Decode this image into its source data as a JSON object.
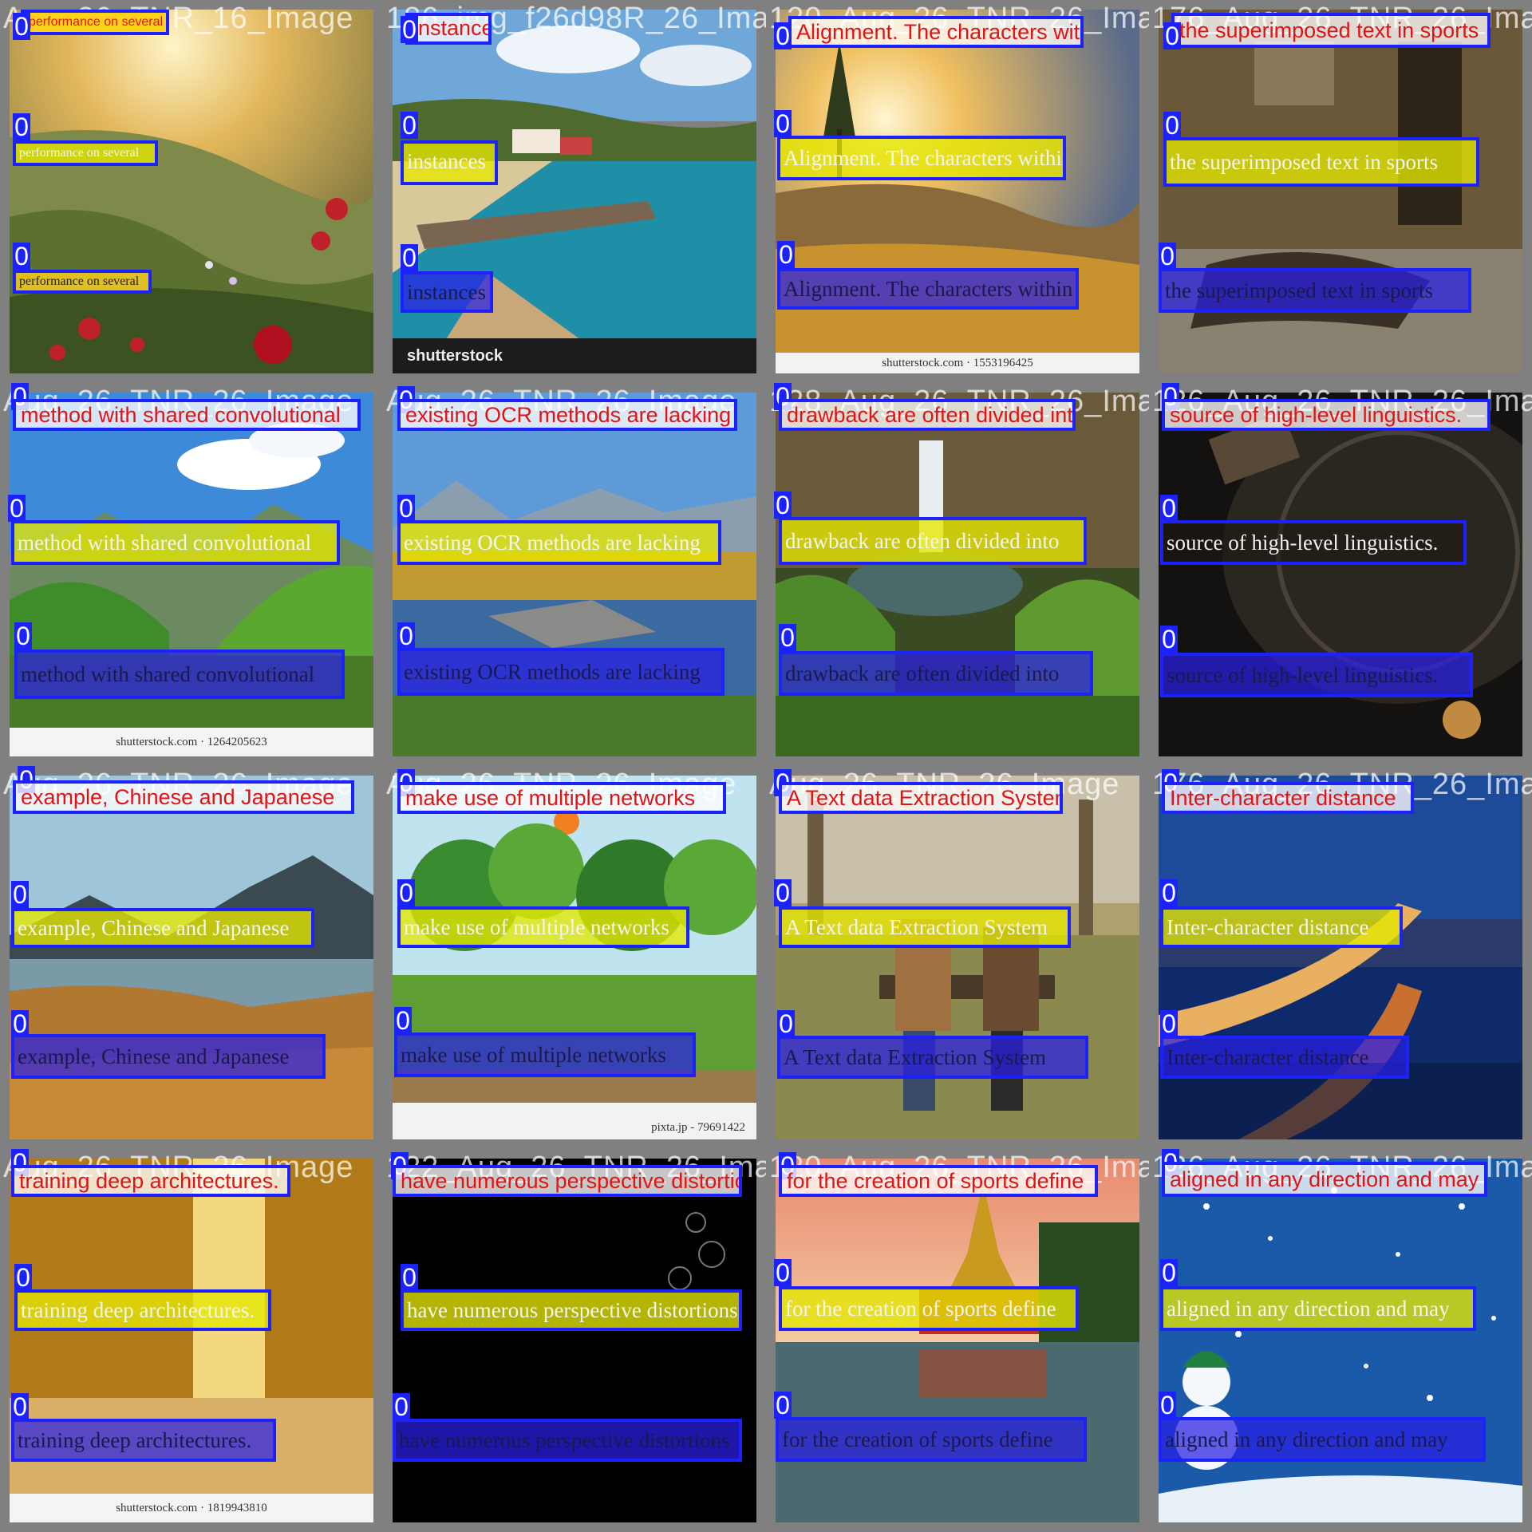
{
  "tiles": [
    {
      "file": "Aug_26_TNR_16_Image",
      "label": "performance on several",
      "wm": ""
    },
    {
      "file": "186_img_f26d98R_26_Image",
      "label": "instances",
      "wm": "shutterstock"
    },
    {
      "file": "120_Aug_26_TNR_26_Image",
      "label": "Alignment. The characters within",
      "wm": "shutterstock.com · 1553196425"
    },
    {
      "file": "176_Aug_26_TNR_26_Image",
      "label": "the superimposed text in sports",
      "wm": ""
    },
    {
      "file": "Aug_26_TNR_26_Image",
      "label": "method with shared convolutional",
      "wm": "shutterstock.com · 1264205623"
    },
    {
      "file": "Aug_26_TNR_26_Image",
      "label": "existing OCR methods are lacking",
      "wm": ""
    },
    {
      "file": "128_Aug_26_TNR_26_Image",
      "label": "drawback are often divided into",
      "wm": ""
    },
    {
      "file": "126_Aug_26_TNR_26_Image",
      "label": "source of high-level linguistics.",
      "wm": ""
    },
    {
      "file": "Aug_26_TNR_26_Image",
      "label": "example, Chinese and Japanese",
      "wm": ""
    },
    {
      "file": "Aug_26_TNR_26_Image",
      "label": "make use of multiple networks",
      "wm": "pixta.jp - 79691422"
    },
    {
      "file": "Aug_26_TNR_26_Image",
      "label": "A Text data Extraction System",
      "wm": ""
    },
    {
      "file": "176_Aug_26_TNR_26_Image",
      "label": "Inter-character distance",
      "wm": ""
    },
    {
      "file": "Aug_26_TNR_26_Image",
      "label": "training deep architectures.",
      "wm": "shutterstock.com · 1819943810"
    },
    {
      "file": "122_Aug_26_TNR_26_Image",
      "label": "have numerous perspective distortions",
      "wm": ""
    },
    {
      "file": "120_Aug_26_TNR_26_Image",
      "label": "for the creation of sports define",
      "wm": ""
    },
    {
      "file": "126_Aug_26_TNR_26_Image",
      "label": "aligned in any direction and may",
      "wm": ""
    }
  ],
  "class_id": "0",
  "colors": {
    "box": "#1b22ff",
    "red_text": "#e41212",
    "yellow_fill": "#e6e800",
    "blue_fill": "#281ee6"
  }
}
